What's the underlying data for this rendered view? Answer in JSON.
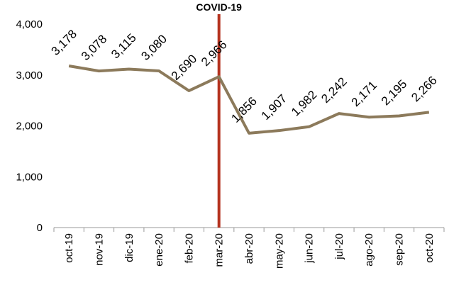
{
  "chart_data": {
    "type": "line",
    "categories": [
      "oct-19",
      "nov-19",
      "dic-19",
      "ene-20",
      "feb-20",
      "mar-20",
      "abr-20",
      "may-20",
      "jun-20",
      "jul-20",
      "ago-20",
      "sep-20",
      "oct-20"
    ],
    "series": [
      {
        "name": null,
        "color": "#8c7a5b",
        "values": [
          3178,
          3078,
          3115,
          3080,
          2690,
          2966,
          1856,
          1907,
          1982,
          2242,
          2171,
          2195,
          2266
        ],
        "value_labels": [
          "3,178",
          "3,078",
          "3,115",
          "3,080",
          "2,690",
          "2,966",
          "1,856",
          "1,907",
          "1,982",
          "2,242",
          "2,171",
          "2,195",
          "2,266"
        ]
      }
    ],
    "ylim": [
      0,
      4000
    ],
    "yticks": [
      0,
      {
        "value": 1000,
        "label": "1,000"
      },
      {
        "value": 2000,
        "label": "2,000"
      },
      {
        "value": 3000,
        "label": "3,000"
      },
      {
        "value": 4000,
        "label": "4,000"
      }
    ],
    "grid": false,
    "annotations": [
      {
        "text": "COVID-19",
        "x": "mar-20",
        "color": "#b5321f"
      }
    ]
  }
}
